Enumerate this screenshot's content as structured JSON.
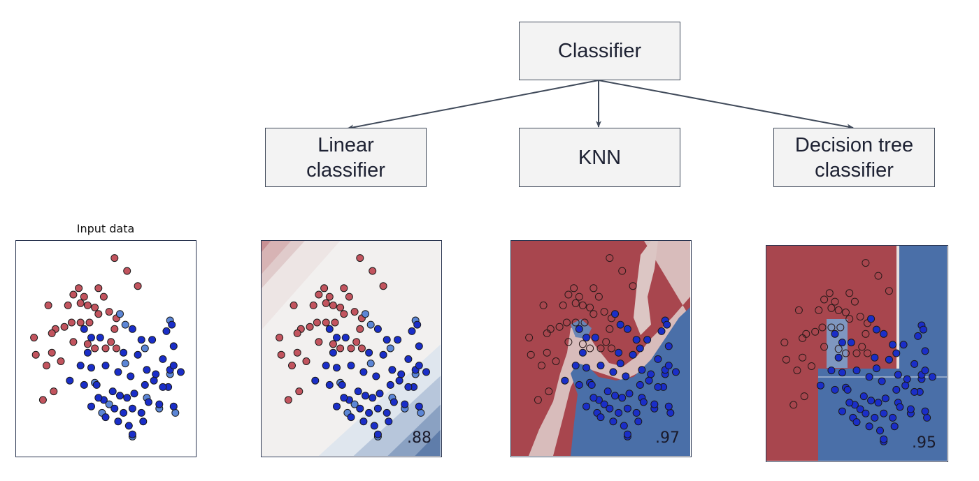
{
  "tree": {
    "root": "Classifier",
    "children": [
      {
        "line1": "Linear",
        "line2": "classifier"
      },
      {
        "line1": "KNN",
        "line2": ""
      },
      {
        "line1": "Decision tree",
        "line2": "classifier"
      }
    ]
  },
  "panels": {
    "input_title": "Input data",
    "scores": [
      ".88",
      ".97",
      ".95"
    ]
  },
  "colors": {
    "red_class": "#c2545e",
    "blue_class": "#1a2ec8",
    "red_region": "#a8464e",
    "blue_region": "#4a6fa8",
    "box_fill": "#f3f3f3",
    "box_border": "#404a5a"
  },
  "points": {
    "red": [
      [
        0.55,
        0.08
      ],
      [
        0.62,
        0.14
      ],
      [
        0.68,
        0.21
      ],
      [
        0.35,
        0.22
      ],
      [
        0.38,
        0.26
      ],
      [
        0.32,
        0.25
      ],
      [
        0.46,
        0.22
      ],
      [
        0.49,
        0.26
      ],
      [
        0.29,
        0.3
      ],
      [
        0.36,
        0.29
      ],
      [
        0.4,
        0.3
      ],
      [
        0.44,
        0.31
      ],
      [
        0.18,
        0.3
      ],
      [
        0.46,
        0.34
      ],
      [
        0.52,
        0.33
      ],
      [
        0.41,
        0.38
      ],
      [
        0.36,
        0.38
      ],
      [
        0.31,
        0.38
      ],
      [
        0.27,
        0.4
      ],
      [
        0.22,
        0.41
      ],
      [
        0.55,
        0.41
      ],
      [
        0.53,
        0.47
      ],
      [
        0.56,
        0.5
      ],
      [
        0.5,
        0.5
      ],
      [
        0.44,
        0.5
      ],
      [
        0.4,
        0.48
      ],
      [
        0.32,
        0.47
      ],
      [
        0.2,
        0.43
      ],
      [
        0.1,
        0.45
      ],
      [
        0.56,
        0.36
      ],
      [
        0.11,
        0.53
      ],
      [
        0.2,
        0.52
      ],
      [
        0.25,
        0.56
      ],
      [
        0.17,
        0.58
      ],
      [
        0.21,
        0.7
      ],
      [
        0.15,
        0.74
      ]
    ],
    "blue": [
      [
        0.38,
        0.41
      ],
      [
        0.42,
        0.45
      ],
      [
        0.47,
        0.45
      ],
      [
        0.65,
        0.41
      ],
      [
        0.7,
        0.46
      ],
      [
        0.76,
        0.46
      ],
      [
        0.87,
        0.39
      ],
      [
        0.84,
        0.42
      ],
      [
        0.88,
        0.49
      ],
      [
        0.4,
        0.52
      ],
      [
        0.6,
        0.52
      ],
      [
        0.68,
        0.53
      ],
      [
        0.36,
        0.58
      ],
      [
        0.42,
        0.59
      ],
      [
        0.5,
        0.58
      ],
      [
        0.57,
        0.61
      ],
      [
        0.64,
        0.63
      ],
      [
        0.73,
        0.6
      ],
      [
        0.82,
        0.55
      ],
      [
        0.86,
        0.6
      ],
      [
        0.88,
        0.58
      ],
      [
        0.92,
        0.61
      ],
      [
        0.78,
        0.62
      ],
      [
        0.85,
        0.68
      ],
      [
        0.3,
        0.65
      ],
      [
        0.38,
        0.67
      ],
      [
        0.45,
        0.67
      ],
      [
        0.54,
        0.7
      ],
      [
        0.58,
        0.72
      ],
      [
        0.62,
        0.73
      ],
      [
        0.66,
        0.71
      ],
      [
        0.72,
        0.67
      ],
      [
        0.77,
        0.65
      ],
      [
        0.82,
        0.68
      ],
      [
        0.42,
        0.77
      ],
      [
        0.49,
        0.74
      ],
      [
        0.55,
        0.78
      ],
      [
        0.6,
        0.8
      ],
      [
        0.65,
        0.78
      ],
      [
        0.7,
        0.8
      ],
      [
        0.74,
        0.75
      ],
      [
        0.8,
        0.76
      ],
      [
        0.88,
        0.77
      ],
      [
        0.5,
        0.82
      ],
      [
        0.57,
        0.84
      ],
      [
        0.63,
        0.86
      ],
      [
        0.71,
        0.84
      ],
      [
        0.65,
        0.9
      ],
      [
        0.46,
        0.73
      ]
    ],
    "light_blue": [
      [
        0.58,
        0.34
      ],
      [
        0.61,
        0.39
      ],
      [
        0.86,
        0.37
      ],
      [
        0.72,
        0.5
      ],
      [
        0.61,
        0.57
      ],
      [
        0.44,
        0.66
      ],
      [
        0.52,
        0.76
      ],
      [
        0.48,
        0.8
      ],
      [
        0.73,
        0.73
      ],
      [
        0.86,
        0.62
      ],
      [
        0.8,
        0.78
      ],
      [
        0.89,
        0.8
      ],
      [
        0.65,
        0.91
      ]
    ]
  }
}
